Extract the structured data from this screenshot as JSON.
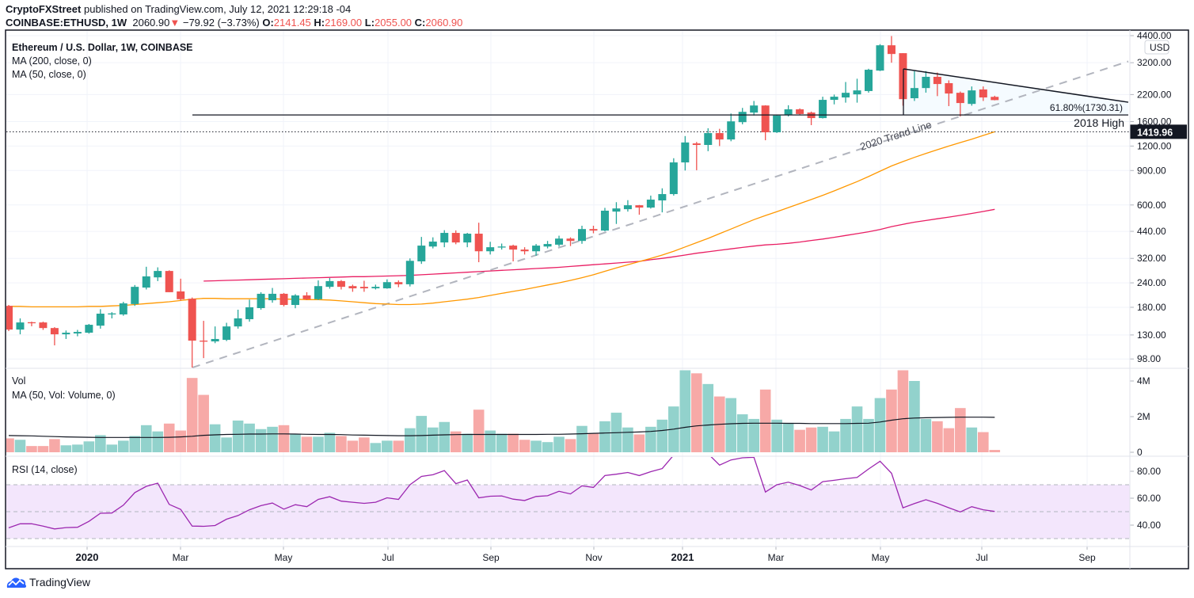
{
  "header": {
    "publisher": "CryptoFXStreet",
    "published_text": "published on TradingView.com, July 12, 2021 12:29:18 -04",
    "symbol": "COINBASE:ETHUSD, 1W",
    "last_price": "2060.90",
    "change": "−79.92 (−3.73%)",
    "open_label": "O:",
    "open": "2141.45",
    "high_label": "H:",
    "high": "2169.00",
    "low_label": "L:",
    "low": "2055.00",
    "close_label": "C:",
    "close": "2060.90"
  },
  "legend": {
    "title": "Ethereum / U.S. Dollar, 1W, COINBASE",
    "ma200": "MA (200, close, 0)",
    "ma50": "MA (50, close, 0)",
    "vol": "Vol",
    "vol_ma": "MA (50, Vol: Volume, 0)",
    "rsi": "RSI (14, close)"
  },
  "annotations": {
    "fib_label": "61.80%(1730.31)",
    "fib_level": 1730.31,
    "high_2018_label": "2018 High",
    "trend_line_label": "2020 Trend Line",
    "last_value_label": "1419.96",
    "last_value": 1419.96,
    "currency_badge": "USD"
  },
  "colors": {
    "up": "#26a69a",
    "down": "#ef5350",
    "vol_up": "#92d2cc",
    "vol_down": "#f7a9a7",
    "ma200": "#e91e63",
    "ma50": "#ff9800",
    "vol_ma": "#131722",
    "rsi": "#9c27b0",
    "rsi_band": "#f3e6fc",
    "trend_line": "#b2b5be",
    "brand": "#2962ff"
  },
  "footer": {
    "brand": "TradingView",
    "icon": "tradingview-logo-icon"
  },
  "chart_data": {
    "type": "candlestick",
    "interval": "1W",
    "price_scale": "log",
    "price_ticks": [
      4400,
      3200,
      2200,
      1600,
      1200,
      900,
      600,
      440,
      320,
      240,
      180,
      130,
      98
    ],
    "price_tick_labels": [
      "4400.00",
      "3200.00",
      "2200.00",
      "1600.00",
      "1200.00",
      "900.00",
      "600.00",
      "440.00",
      "320.00",
      "240.00",
      "180.00",
      "130.00",
      "98.00"
    ],
    "x_tick_labels": [
      "2020",
      "Mar",
      "May",
      "Jul",
      "Sep",
      "Nov",
      "2021",
      "Mar",
      "May",
      "Jul",
      "Sep"
    ],
    "volume_ticks": [
      "4M",
      "2M",
      "0"
    ],
    "rsi_ticks": [
      "80.00",
      "60.00",
      "40.00"
    ],
    "rsi_bands": [
      70,
      50,
      30
    ],
    "ohlc": [
      [
        183,
        185,
        136,
        138.5
      ],
      [
        138.5,
        158,
        131,
        150.6
      ],
      [
        151,
        152,
        144,
        150
      ],
      [
        150.6,
        152,
        138,
        141
      ],
      [
        141,
        142.5,
        115,
        131
      ],
      [
        131,
        137,
        124,
        133.5
      ],
      [
        132.3,
        138,
        128,
        134.7
      ],
      [
        133.5,
        148,
        132,
        146.5
      ],
      [
        145,
        176,
        140,
        167
      ],
      [
        166,
        170,
        158,
        167.5
      ],
      [
        165.5,
        192,
        163,
        188.5
      ],
      [
        187,
        234,
        183,
        229
      ],
      [
        227,
        290,
        222,
        259
      ],
      [
        256,
        288,
        245,
        276
      ],
      [
        276,
        278,
        215,
        215
      ],
      [
        217,
        252,
        195,
        198
      ],
      [
        199,
        202,
        88.6,
        121.6
      ],
      [
        121.6,
        153.5,
        99,
        120.5
      ],
      [
        120.5,
        143.7,
        118,
        124
      ],
      [
        122.7,
        150,
        121,
        143.7
      ],
      [
        143.7,
        175,
        140,
        158
      ],
      [
        156.5,
        197,
        152,
        180
      ],
      [
        178.3,
        215,
        175,
        211
      ],
      [
        195.6,
        226,
        190,
        211
      ],
      [
        211,
        213,
        182,
        185
      ],
      [
        185,
        210,
        178,
        207
      ],
      [
        207,
        215,
        196,
        198
      ],
      [
        198,
        247,
        196,
        231
      ],
      [
        229,
        254,
        224,
        245
      ],
      [
        245,
        248,
        222,
        229
      ],
      [
        231,
        235,
        216,
        225
      ],
      [
        229,
        246,
        216,
        225
      ],
      [
        225,
        235,
        222,
        229
      ],
      [
        225,
        250,
        224,
        242
      ],
      [
        242,
        247,
        228,
        236
      ],
      [
        236,
        320,
        230,
        311
      ],
      [
        309,
        412,
        300,
        372
      ],
      [
        368,
        410,
        360,
        390
      ],
      [
        386,
        446,
        365,
        432
      ],
      [
        432,
        445,
        378,
        386
      ],
      [
        386,
        432,
        365,
        428
      ],
      [
        428,
        487,
        306,
        348
      ],
      [
        348,
        389,
        335,
        365
      ],
      [
        365,
        381,
        355,
        368
      ],
      [
        372,
        376,
        309,
        355
      ],
      [
        355,
        365,
        335,
        348
      ],
      [
        348,
        379,
        330,
        372
      ],
      [
        368,
        393,
        360,
        379
      ],
      [
        376,
        418,
        368,
        404
      ],
      [
        404,
        410,
        370,
        393
      ],
      [
        393,
        470,
        380,
        452
      ],
      [
        452,
        470,
        430,
        444
      ],
      [
        444,
        580,
        440,
        561
      ],
      [
        555,
        620,
        480,
        576
      ],
      [
        571,
        635,
        555,
        598
      ],
      [
        598,
        600,
        535,
        582
      ],
      [
        582,
        670,
        575,
        639
      ],
      [
        633,
        730,
        550,
        682
      ],
      [
        682,
        1040,
        670,
        990
      ],
      [
        990,
        1350,
        900,
        1252
      ],
      [
        1238,
        1260,
        903,
        1216
      ],
      [
        1216,
        1480,
        1130,
        1398
      ],
      [
        1398,
        1470,
        1200,
        1297
      ],
      [
        1297,
        1760,
        1270,
        1605
      ],
      [
        1590,
        1880,
        1550,
        1795
      ],
      [
        1780,
        2040,
        1720,
        1934
      ],
      [
        1934,
        1940,
        1285,
        1411
      ],
      [
        1411,
        1740,
        1400,
        1720
      ],
      [
        1733,
        1940,
        1700,
        1849
      ],
      [
        1849,
        1870,
        1730,
        1750
      ],
      [
        1780,
        1800,
        1535,
        1668
      ],
      [
        1668,
        2145,
        1660,
        2067
      ],
      [
        2067,
        2200,
        1960,
        2145
      ],
      [
        2126,
        2550,
        2000,
        2246
      ],
      [
        2205,
        2650,
        2000,
        2310
      ],
      [
        2293,
        2980,
        2250,
        2946
      ],
      [
        2917,
        3980,
        2900,
        3928
      ],
      [
        3928,
        4380,
        3200,
        3546
      ],
      [
        3580,
        3580,
        1930,
        2084
      ],
      [
        2107,
        2900,
        2040,
        2375
      ],
      [
        2375,
        2900,
        2250,
        2710
      ],
      [
        2710,
        2850,
        2160,
        2490
      ],
      [
        2515,
        2600,
        1920,
        2227
      ],
      [
        2246,
        2280,
        1700,
        1991
      ],
      [
        1971,
        2420,
        1930,
        2310
      ],
      [
        2336,
        2420,
        2040,
        2126
      ],
      [
        2141.45,
        2169,
        2055,
        2060.9
      ]
    ],
    "volume_millions": [
      0.78,
      0.7,
      0.35,
      0.35,
      0.74,
      0.39,
      0.43,
      0.61,
      0.96,
      0.43,
      0.65,
      0.91,
      1.52,
      1.17,
      1.61,
      1.22,
      4.17,
      3.22,
      1.57,
      0.83,
      1.78,
      1.61,
      1.3,
      1.43,
      1.52,
      1.04,
      0.87,
      0.87,
      1.09,
      0.91,
      0.65,
      0.83,
      0.52,
      0.65,
      0.65,
      1.35,
      2.04,
      1.39,
      1.7,
      1.17,
      1.04,
      2.39,
      1.22,
      1.04,
      1.04,
      0.7,
      0.65,
      0.57,
      0.87,
      0.74,
      1.48,
      1.04,
      1.74,
      2.22,
      1.39,
      1.0,
      1.43,
      1.83,
      2.57,
      4.6,
      4.43,
      3.83,
      3.13,
      3.04,
      2.13,
      1.87,
      3.52,
      1.83,
      1.65,
      1.26,
      1.39,
      1.43,
      1.17,
      1.87,
      2.57,
      1.87,
      3.04,
      3.52,
      4.6,
      4.0,
      1.87,
      1.74,
      1.35,
      2.48,
      1.39,
      1.13,
      0.13
    ],
    "volume_ma50_millions": [
      0.94,
      0.93,
      0.92,
      0.9,
      0.88,
      0.86,
      0.85,
      0.84,
      0.83,
      0.83,
      0.83,
      0.83,
      0.83,
      0.83,
      0.84,
      0.86,
      0.9,
      0.95,
      0.98,
      1.0,
      1.01,
      1.02,
      1.02,
      1.03,
      1.03,
      1.02,
      1.01,
      1.0,
      1.0,
      0.99,
      0.97,
      0.96,
      0.95,
      0.94,
      0.93,
      0.93,
      0.94,
      0.96,
      0.98,
      0.99,
      1.0,
      1.0,
      1.0,
      1.0,
      1.0,
      1.0,
      1.0,
      1.01,
      1.01,
      1.02,
      1.04,
      1.06,
      1.08,
      1.1,
      1.12,
      1.14,
      1.17,
      1.22,
      1.3,
      1.4,
      1.48,
      1.53,
      1.57,
      1.6,
      1.62,
      1.63,
      1.63,
      1.63,
      1.62,
      1.62,
      1.61,
      1.61,
      1.61,
      1.61,
      1.62,
      1.63,
      1.7,
      1.8,
      1.88,
      1.92,
      1.94,
      1.95,
      1.96,
      1.97,
      1.97,
      1.97,
      1.96
    ],
    "ma50": [
      182,
      182,
      181,
      181,
      181,
      181,
      181,
      182,
      182,
      183,
      184,
      186,
      188,
      190,
      192,
      195,
      198,
      200,
      200,
      199,
      199,
      199,
      199,
      199,
      198,
      198,
      197,
      197,
      196,
      194,
      192,
      190,
      188,
      187,
      186,
      186,
      187,
      189,
      192,
      195,
      198,
      202,
      207,
      212,
      217,
      222,
      228,
      234,
      240,
      247,
      255,
      264,
      275,
      286,
      297,
      308,
      320,
      333,
      348,
      366,
      385,
      405,
      428,
      452,
      478,
      505,
      530,
      555,
      582,
      610,
      640,
      672,
      708,
      748,
      790,
      838,
      893,
      950,
      1000,
      1050,
      1100,
      1150,
      1200,
      1250,
      1300,
      1360,
      1420
    ],
    "ma200": [
      null,
      null,
      null,
      null,
      null,
      null,
      null,
      null,
      null,
      null,
      null,
      null,
      null,
      null,
      null,
      null,
      null,
      245,
      246,
      247,
      248,
      249,
      250,
      251,
      252,
      253,
      254,
      255,
      256,
      257,
      258,
      258,
      259,
      260,
      261,
      262,
      264,
      266,
      268,
      270,
      272,
      274,
      276,
      278,
      280,
      282,
      284,
      286,
      288,
      291,
      294,
      297,
      300,
      303,
      306,
      309,
      315,
      320,
      326,
      333,
      340,
      346,
      352,
      358,
      364,
      370,
      375,
      378,
      382,
      388,
      395,
      402,
      410,
      419,
      428,
      438,
      450,
      465,
      478,
      490,
      500,
      510,
      520,
      531,
      543,
      556,
      570
    ],
    "rsi": [
      38,
      41,
      41,
      39.3,
      37.2,
      38.2,
      38.4,
      42.8,
      48.8,
      49,
      54.8,
      64.2,
      68.8,
      71.2,
      55.4,
      51.7,
      39.3,
      39.1,
      39.7,
      44.4,
      47.1,
      51.4,
      54.5,
      56.4,
      51.9,
      55.2,
      53.7,
      59.1,
      61.1,
      57.8,
      57,
      56.2,
      57,
      60.3,
      59.1,
      70,
      76.2,
      77.4,
      80.5,
      70.8,
      73.5,
      60.3,
      61.5,
      61.7,
      59.3,
      58.3,
      61.3,
      61.8,
      65.1,
      63.2,
      69.2,
      68,
      76.8,
      77.8,
      79.1,
      76.8,
      79.7,
      82,
      92,
      95,
      91,
      93,
      84.6,
      88.4,
      90,
      90.4,
      64.6,
      70,
      71.9,
      69.4,
      66.1,
      72.3,
      73.3,
      74.5,
      75.4,
      81.7,
      87.5,
      78.5,
      52.9,
      56,
      58.9,
      56.2,
      52.9,
      49.8,
      53.7,
      51.4,
      50.2
    ]
  }
}
